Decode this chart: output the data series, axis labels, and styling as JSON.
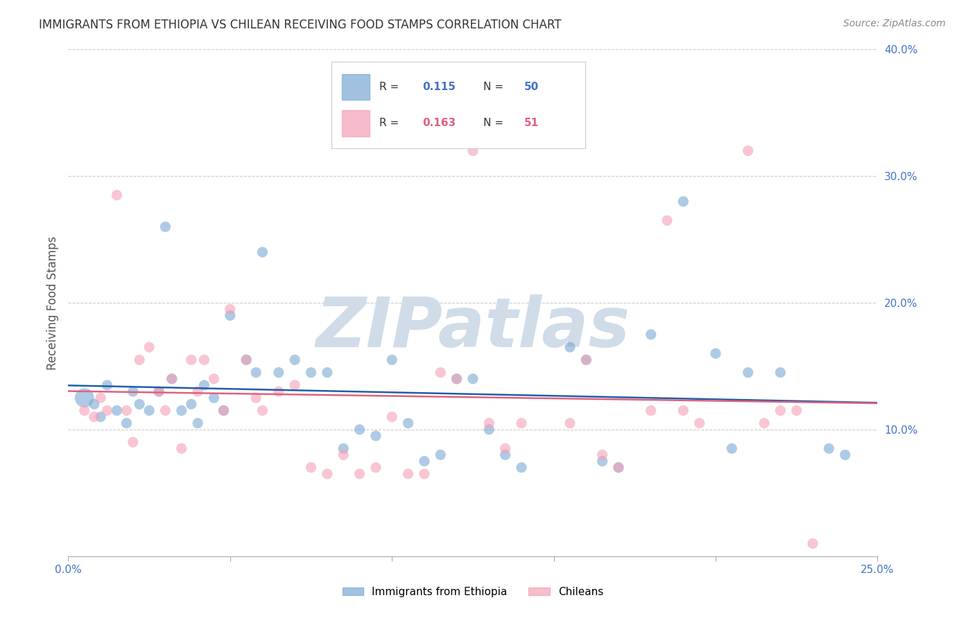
{
  "title": "IMMIGRANTS FROM ETHIOPIA VS CHILEAN RECEIVING FOOD STAMPS CORRELATION CHART",
  "source": "Source: ZipAtlas.com",
  "ylabel": "Receiving Food Stamps",
  "xlim": [
    0.0,
    0.25
  ],
  "ylim": [
    0.0,
    0.4
  ],
  "yticks": [
    0.0,
    0.1,
    0.2,
    0.3,
    0.4
  ],
  "ytick_labels": [
    "",
    "10.0%",
    "20.0%",
    "30.0%",
    "40.0%"
  ],
  "xticks": [
    0.0,
    0.05,
    0.1,
    0.15,
    0.2,
    0.25
  ],
  "xtick_labels": [
    "0.0%",
    "",
    "",
    "",
    "",
    "25.0%"
  ],
  "series1_label": "Immigrants from Ethiopia",
  "series1_color": "#7ba7d4",
  "series1_R": "0.115",
  "series1_N": "50",
  "series2_label": "Chileans",
  "series2_color": "#f4a0b5",
  "series2_R": "0.163",
  "series2_N": "51",
  "background_color": "#ffffff",
  "grid_color": "#cccccc",
  "axis_color": "#4472c4",
  "title_color": "#333333",
  "watermark_text": "ZIPatlas",
  "watermark_color": "#d0dce8",
  "series1_x": [
    0.005,
    0.008,
    0.01,
    0.012,
    0.015,
    0.018,
    0.02,
    0.022,
    0.025,
    0.028,
    0.03,
    0.032,
    0.035,
    0.038,
    0.04,
    0.042,
    0.045,
    0.048,
    0.05,
    0.055,
    0.058,
    0.06,
    0.065,
    0.07,
    0.075,
    0.08,
    0.085,
    0.09,
    0.095,
    0.1,
    0.105,
    0.11,
    0.115,
    0.12,
    0.125,
    0.13,
    0.135,
    0.14,
    0.155,
    0.16,
    0.165,
    0.17,
    0.18,
    0.19,
    0.2,
    0.205,
    0.21,
    0.22,
    0.235,
    0.24
  ],
  "series1_y": [
    0.125,
    0.12,
    0.11,
    0.135,
    0.115,
    0.105,
    0.13,
    0.12,
    0.115,
    0.13,
    0.26,
    0.14,
    0.115,
    0.12,
    0.105,
    0.135,
    0.125,
    0.115,
    0.19,
    0.155,
    0.145,
    0.24,
    0.145,
    0.155,
    0.145,
    0.145,
    0.085,
    0.1,
    0.095,
    0.155,
    0.105,
    0.075,
    0.08,
    0.14,
    0.14,
    0.1,
    0.08,
    0.07,
    0.165,
    0.155,
    0.075,
    0.07,
    0.175,
    0.28,
    0.16,
    0.085,
    0.145,
    0.145,
    0.085,
    0.08
  ],
  "series1_sizes": [
    400,
    120,
    120,
    120,
    120,
    120,
    120,
    120,
    120,
    120,
    120,
    120,
    120,
    120,
    120,
    120,
    120,
    120,
    120,
    120,
    120,
    120,
    120,
    120,
    120,
    120,
    120,
    120,
    120,
    120,
    120,
    120,
    120,
    120,
    120,
    120,
    120,
    120,
    120,
    120,
    120,
    120,
    120,
    120,
    120,
    120,
    120,
    120,
    120,
    120
  ],
  "series2_x": [
    0.005,
    0.008,
    0.01,
    0.012,
    0.015,
    0.018,
    0.02,
    0.022,
    0.025,
    0.028,
    0.03,
    0.032,
    0.035,
    0.038,
    0.04,
    0.042,
    0.045,
    0.048,
    0.05,
    0.055,
    0.058,
    0.06,
    0.065,
    0.07,
    0.075,
    0.08,
    0.085,
    0.09,
    0.095,
    0.1,
    0.105,
    0.11,
    0.115,
    0.12,
    0.125,
    0.13,
    0.135,
    0.14,
    0.155,
    0.16,
    0.165,
    0.17,
    0.18,
    0.185,
    0.19,
    0.195,
    0.21,
    0.215,
    0.22,
    0.225,
    0.23
  ],
  "series2_y": [
    0.115,
    0.11,
    0.125,
    0.115,
    0.285,
    0.115,
    0.09,
    0.155,
    0.165,
    0.13,
    0.115,
    0.14,
    0.085,
    0.155,
    0.13,
    0.155,
    0.14,
    0.115,
    0.195,
    0.155,
    0.125,
    0.115,
    0.13,
    0.135,
    0.07,
    0.065,
    0.08,
    0.065,
    0.07,
    0.11,
    0.065,
    0.065,
    0.145,
    0.14,
    0.32,
    0.105,
    0.085,
    0.105,
    0.105,
    0.155,
    0.08,
    0.07,
    0.115,
    0.265,
    0.115,
    0.105,
    0.32,
    0.105,
    0.115,
    0.115,
    0.01
  ],
  "trend1_color": "#1f5fa6",
  "trend2_color": "#e06080",
  "legend_R_color": "#4472c4",
  "legend_N_color": "#4472c4",
  "legend_R2_color": "#e06080",
  "legend_N2_color": "#e06080"
}
